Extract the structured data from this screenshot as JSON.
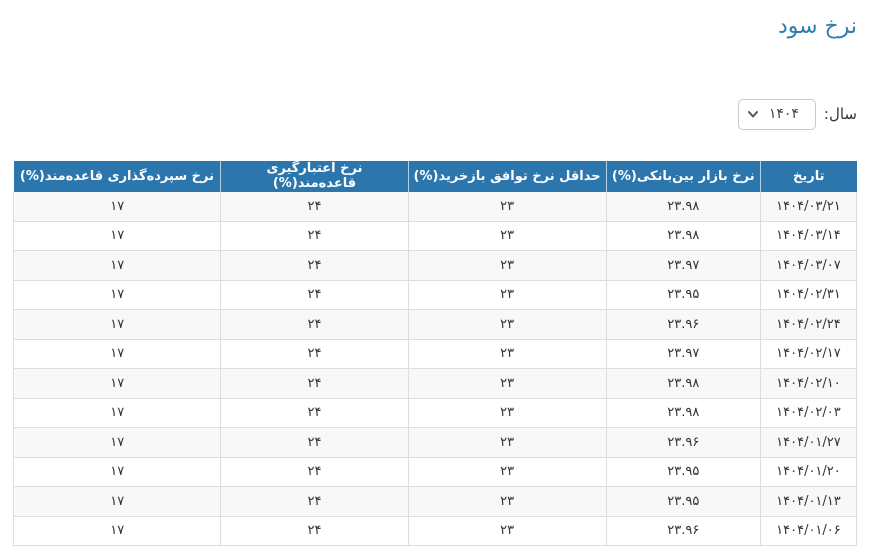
{
  "page": {
    "title": "نرخ سود"
  },
  "year_selector": {
    "label": "سال:",
    "value": "۱۴۰۴",
    "icon": "chevron-down-icon"
  },
  "table": {
    "columns": [
      "تاریخ",
      "نرخ بازار بین‌بانکی(%)",
      "حداقل نرخ توافق بازخرید(%)",
      "نرخ اعتبارگیری قاعده‌مند(%)",
      "نرخ سپرده‌گذاری قاعده‌مند(%)"
    ],
    "rows": [
      [
        "۱۴۰۴/۰۳/۲۱",
        "۲۳.۹۸",
        "۲۳",
        "۲۴",
        "۱۷"
      ],
      [
        "۱۴۰۴/۰۳/۱۴",
        "۲۳.۹۸",
        "۲۳",
        "۲۴",
        "۱۷"
      ],
      [
        "۱۴۰۴/۰۳/۰۷",
        "۲۳.۹۷",
        "۲۳",
        "۲۴",
        "۱۷"
      ],
      [
        "۱۴۰۴/۰۲/۳۱",
        "۲۳.۹۵",
        "۲۳",
        "۲۴",
        "۱۷"
      ],
      [
        "۱۴۰۴/۰۲/۲۴",
        "۲۳.۹۶",
        "۲۳",
        "۲۴",
        "۱۷"
      ],
      [
        "۱۴۰۴/۰۲/۱۷",
        "۲۳.۹۷",
        "۲۳",
        "۲۴",
        "۱۷"
      ],
      [
        "۱۴۰۴/۰۲/۱۰",
        "۲۳.۹۸",
        "۲۳",
        "۲۴",
        "۱۷"
      ],
      [
        "۱۴۰۴/۰۲/۰۳",
        "۲۳.۹۸",
        "۲۳",
        "۲۴",
        "۱۷"
      ],
      [
        "۱۴۰۴/۰۱/۲۷",
        "۲۳.۹۶",
        "۲۳",
        "۲۴",
        "۱۷"
      ],
      [
        "۱۴۰۴/۰۱/۲۰",
        "۲۳.۹۵",
        "۲۳",
        "۲۴",
        "۱۷"
      ],
      [
        "۱۴۰۴/۰۱/۱۳",
        "۲۳.۹۵",
        "۲۳",
        "۲۴",
        "۱۷"
      ],
      [
        "۱۴۰۴/۰۱/۰۶",
        "۲۳.۹۶",
        "۲۳",
        "۲۴",
        "۱۷"
      ]
    ]
  },
  "colors": {
    "title": "#2f7ead",
    "header_bg": "#2b77ad",
    "header_text": "#ffffff",
    "row_stripe": "#f8f8f8",
    "border": "#dddddd",
    "cell_text": "#333333"
  }
}
